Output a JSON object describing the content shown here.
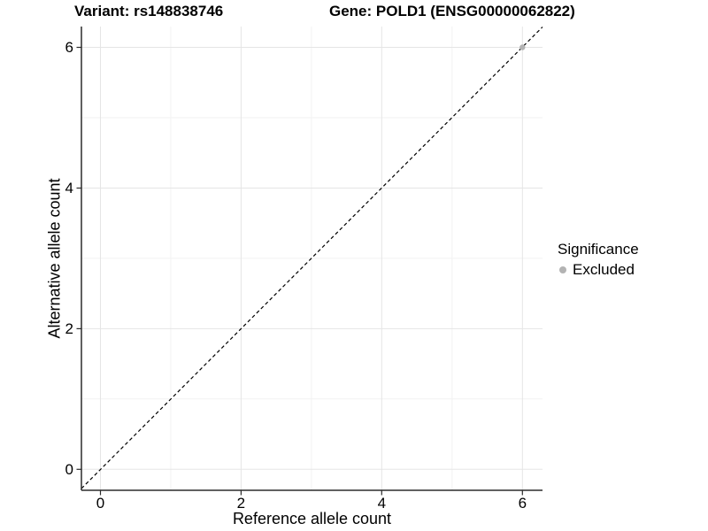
{
  "chart_data": {
    "type": "scatter",
    "title_variant": "Variant: rs148838746",
    "title_gene": "Gene: POLD1 (ENSG00000062822)",
    "xlabel": "Reference allele count",
    "ylabel": "Alternative allele count",
    "xlim": [
      -0.3,
      6.3
    ],
    "ylim": [
      -0.3,
      6.3
    ],
    "x_ticks": [
      "0",
      "2",
      "4",
      "6"
    ],
    "y_ticks": [
      "0",
      "2",
      "4",
      "6"
    ],
    "grid": {
      "major_color": "#e5e5e5",
      "minor_color": "#f2f2f2",
      "major_at": [
        0,
        2,
        4,
        6
      ],
      "minor_at": [
        1,
        3,
        5
      ]
    },
    "reference_line": {
      "type": "identity y=x",
      "style": "dashed",
      "color": "#000000"
    },
    "points": [
      {
        "x": 6,
        "y": 6,
        "significance": "Excluded",
        "color": "#b3b3b3"
      }
    ],
    "legend": {
      "position": "right",
      "title": "Significance",
      "entries": [
        {
          "label": "Excluded",
          "color": "#b3b3b3",
          "marker": "point"
        }
      ]
    }
  }
}
